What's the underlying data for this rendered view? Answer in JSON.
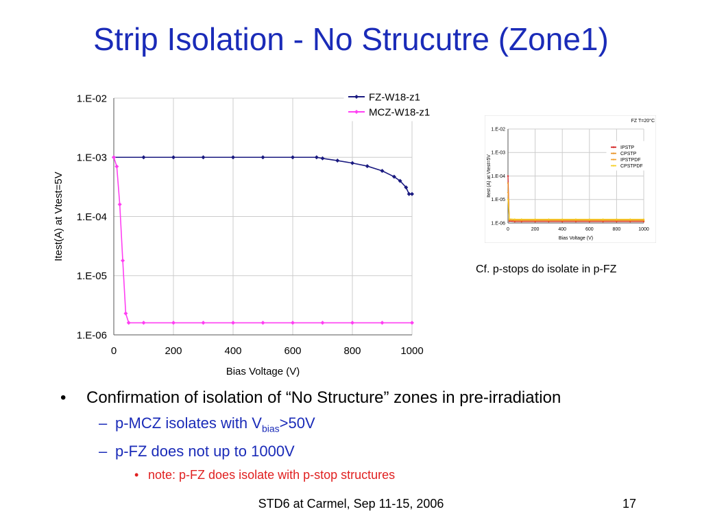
{
  "slide": {
    "title": "Strip Isolation - No Strucutre (Zone1)",
    "inset_caption": "Cf. p-stops do isolate in p-FZ",
    "bullets": {
      "b1_text": "Confirmation of isolation of “No Structure” zones in pre-irradiation",
      "b2a_prefix": "p-MCZ isolates with V",
      "b2a_sub": "bias",
      "b2a_suffix": ">50V",
      "b2b_text": "p-FZ does not up to 1000V",
      "b3_text": "note: p-FZ does isolate with p-stop structures"
    },
    "footer_center": "STD6 at Carmel, Sep 11-15, 2006",
    "page_number": "17"
  },
  "chart_data": [
    {
      "type": "line",
      "xlabel": "Bias Voltage (V)",
      "ylabel": "Itest(A) at Vtest=5V",
      "xlim": [
        0,
        1000
      ],
      "ylim": [
        1e-06,
        0.01
      ],
      "yscale": "log",
      "xticks": [
        "0",
        "200",
        "400",
        "600",
        "800",
        "1000"
      ],
      "yticks": [
        "1.E-06",
        "1.E-05",
        "1.E-04",
        "1.E-03",
        "1.E-02"
      ],
      "grid": true,
      "legend_position": "top-right",
      "series": [
        {
          "name": "FZ-W18-z1",
          "color": "#1a1a80",
          "marker": "diamond",
          "x": [
            0,
            100,
            200,
            300,
            400,
            500,
            600,
            680,
            700,
            750,
            800,
            850,
            900,
            940,
            960,
            980,
            990,
            1000
          ],
          "y": [
            0.001,
            0.001,
            0.001,
            0.001,
            0.001,
            0.001,
            0.001,
            0.001,
            0.00096,
            0.00088,
            0.0008,
            0.00071,
            0.00059,
            0.00047,
            0.0004,
            0.00031,
            0.00024,
            0.00024
          ]
        },
        {
          "name": "MCZ-W18-z1",
          "color": "#ff3ff2",
          "marker": "diamond",
          "x": [
            0,
            10,
            20,
            30,
            40,
            50,
            100,
            200,
            300,
            400,
            500,
            600,
            700,
            800,
            900,
            1000
          ],
          "y": [
            0.001,
            0.0007,
            0.00016,
            1.8e-05,
            2.3e-06,
            1.6e-06,
            1.6e-06,
            1.6e-06,
            1.6e-06,
            1.6e-06,
            1.6e-06,
            1.6e-06,
            1.6e-06,
            1.6e-06,
            1.6e-06,
            1.6e-06
          ]
        }
      ]
    },
    {
      "type": "line",
      "title": "FZ T=20°C",
      "xlabel": "Bias Voltage (V)",
      "ylabel": "Itest (A) at Vtest=5V",
      "xlim": [
        0,
        1000
      ],
      "ylim": [
        1e-06,
        0.01
      ],
      "yscale": "log",
      "xticks": [
        "0",
        "200",
        "400",
        "600",
        "800",
        "1000"
      ],
      "yticks": [
        "1.E-06",
        "1.E-05",
        "1.E-04",
        "1.E-03",
        "1.E-02"
      ],
      "grid": true,
      "legend_position": "top-right",
      "series": [
        {
          "name": "IPSTP",
          "color": "#d01010",
          "x": [
            0,
            10,
            50,
            100,
            200,
            300,
            400,
            500,
            600,
            700,
            800,
            900,
            1000
          ],
          "y": [
            0.0001,
            1.2e-06,
            1.15e-06,
            1.15e-06,
            1.15e-06,
            1.15e-06,
            1.15e-06,
            1.15e-06,
            1.15e-06,
            1.15e-06,
            1.15e-06,
            1.15e-06,
            1.15e-06
          ]
        },
        {
          "name": "CPSTP",
          "color": "#e89020",
          "x": [
            0,
            10,
            50,
            100,
            200,
            300,
            400,
            500,
            600,
            700,
            800,
            900,
            1000
          ],
          "y": [
            5e-05,
            1.3e-06,
            1.25e-06,
            1.25e-06,
            1.25e-06,
            1.25e-06,
            1.25e-06,
            1.25e-06,
            1.25e-06,
            1.25e-06,
            1.25e-06,
            1.25e-06,
            1.25e-06
          ]
        },
        {
          "name": "IPSTPDF",
          "color": "#f0a030",
          "x": [
            0,
            10,
            50,
            100,
            200,
            300,
            400,
            500,
            600,
            700,
            800,
            900,
            1000
          ],
          "y": [
            2e-05,
            1.4e-06,
            1.35e-06,
            1.35e-06,
            1.35e-06,
            1.35e-06,
            1.35e-06,
            1.35e-06,
            1.35e-06,
            1.35e-06,
            1.35e-06,
            1.35e-06,
            1.35e-06
          ]
        },
        {
          "name": "CPSTPDF",
          "color": "#f5d020",
          "x": [
            0,
            10,
            50,
            100,
            200,
            300,
            400,
            500,
            600,
            700,
            800,
            900,
            1000
          ],
          "y": [
            1e-05,
            1.5e-06,
            1.45e-06,
            1.45e-06,
            1.45e-06,
            1.45e-06,
            1.45e-06,
            1.45e-06,
            1.45e-06,
            1.45e-06,
            1.45e-06,
            1.45e-06,
            1.45e-06
          ]
        }
      ]
    }
  ]
}
